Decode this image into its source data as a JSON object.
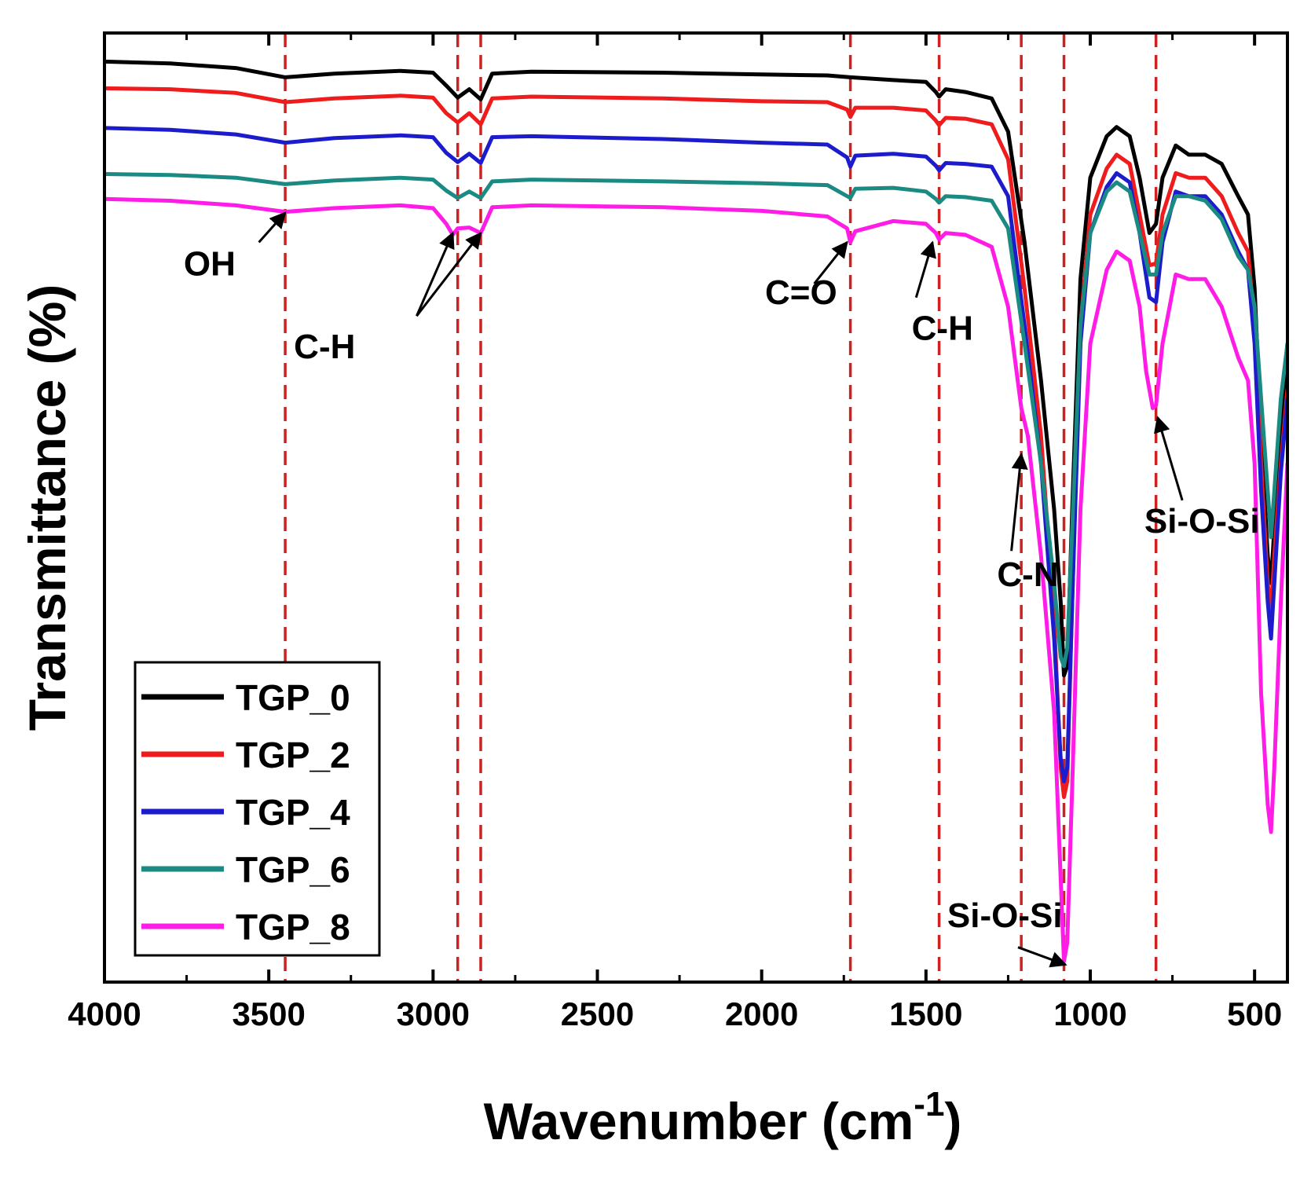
{
  "chart_data": {
    "type": "line",
    "title": "",
    "xlabel": "Wavenumber",
    "xlabel_unit_base": "(cm",
    "xlabel_unit_exp": "-1",
    "xlabel_unit_close": ")",
    "ylabel": "Transmittance (%)",
    "xlim": [
      4000,
      400
    ],
    "x_reversed": true,
    "ylim": [
      0,
      100
    ],
    "y_tick_labels_shown": false,
    "grid": false,
    "legend_position": "bottom-left",
    "x_ticks": [
      4000,
      3500,
      3000,
      2500,
      2000,
      1500,
      1000,
      500
    ],
    "x_tick_labels": [
      "4000",
      "3500",
      "3000",
      "2500",
      "2000",
      "1500",
      "1000",
      "500"
    ],
    "reference_lines": [
      3450,
      2925,
      2855,
      1730,
      1460,
      1210,
      1080,
      800
    ],
    "series": [
      {
        "name": "TGP_0",
        "color": "#000000",
        "points": [
          [
            4000,
            98.6
          ],
          [
            3800,
            98.4
          ],
          [
            3600,
            97.9
          ],
          [
            3450,
            96.9
          ],
          [
            3300,
            97.3
          ],
          [
            3100,
            97.6
          ],
          [
            3000,
            97.4
          ],
          [
            2960,
            96.0
          ],
          [
            2925,
            94.7
          ],
          [
            2890,
            95.6
          ],
          [
            2855,
            94.5
          ],
          [
            2820,
            97.3
          ],
          [
            2700,
            97.5
          ],
          [
            2300,
            97.4
          ],
          [
            2000,
            97.2
          ],
          [
            1800,
            97.1
          ],
          [
            1730,
            96.9
          ],
          [
            1600,
            96.6
          ],
          [
            1500,
            96.4
          ],
          [
            1470,
            95.3
          ],
          [
            1460,
            94.8
          ],
          [
            1440,
            95.6
          ],
          [
            1380,
            95.3
          ],
          [
            1300,
            94.6
          ],
          [
            1250,
            91.0
          ],
          [
            1200,
            79.0
          ],
          [
            1150,
            64.0
          ],
          [
            1110,
            50.0
          ],
          [
            1090,
            40.0
          ],
          [
            1080,
            32.0
          ],
          [
            1070,
            33.0
          ],
          [
            1055,
            50.0
          ],
          [
            1030,
            75.0
          ],
          [
            1000,
            86.0
          ],
          [
            950,
            90.5
          ],
          [
            920,
            91.5
          ],
          [
            880,
            90.5
          ],
          [
            850,
            86.0
          ],
          [
            820,
            80.0
          ],
          [
            800,
            81.0
          ],
          [
            780,
            86.0
          ],
          [
            740,
            89.5
          ],
          [
            700,
            88.5
          ],
          [
            650,
            88.5
          ],
          [
            600,
            87.5
          ],
          [
            550,
            84.0
          ],
          [
            520,
            82.0
          ],
          [
            500,
            74.0
          ],
          [
            480,
            58.0
          ],
          [
            460,
            45.0
          ],
          [
            450,
            42.0
          ],
          [
            440,
            48.0
          ],
          [
            420,
            58.0
          ],
          [
            400,
            68.0
          ]
        ]
      },
      {
        "name": "TGP_2",
        "color": "#ee1c1c",
        "points": [
          [
            4000,
            95.7
          ],
          [
            3800,
            95.6
          ],
          [
            3600,
            95.2
          ],
          [
            3450,
            94.2
          ],
          [
            3300,
            94.6
          ],
          [
            3100,
            94.9
          ],
          [
            3000,
            94.7
          ],
          [
            2960,
            93.0
          ],
          [
            2925,
            92.0
          ],
          [
            2890,
            93.0
          ],
          [
            2855,
            91.8
          ],
          [
            2820,
            94.6
          ],
          [
            2700,
            94.8
          ],
          [
            2300,
            94.6
          ],
          [
            2000,
            94.3
          ],
          [
            1800,
            94.2
          ],
          [
            1740,
            93.4
          ],
          [
            1730,
            92.6
          ],
          [
            1715,
            93.6
          ],
          [
            1600,
            93.6
          ],
          [
            1500,
            93.3
          ],
          [
            1470,
            92.2
          ],
          [
            1460,
            91.7
          ],
          [
            1440,
            92.5
          ],
          [
            1380,
            92.4
          ],
          [
            1300,
            91.8
          ],
          [
            1250,
            88.0
          ],
          [
            1200,
            74.0
          ],
          [
            1150,
            58.0
          ],
          [
            1110,
            38.0
          ],
          [
            1090,
            22.0
          ],
          [
            1080,
            18.8
          ],
          [
            1070,
            20.5
          ],
          [
            1055,
            40.0
          ],
          [
            1030,
            70.0
          ],
          [
            1000,
            82.0
          ],
          [
            950,
            87.0
          ],
          [
            920,
            88.5
          ],
          [
            880,
            87.5
          ],
          [
            850,
            82.0
          ],
          [
            820,
            76.5
          ],
          [
            800,
            76.7
          ],
          [
            780,
            82.0
          ],
          [
            740,
            86.5
          ],
          [
            700,
            86.0
          ],
          [
            650,
            86.0
          ],
          [
            600,
            84.0
          ],
          [
            550,
            80.0
          ],
          [
            520,
            78.0
          ],
          [
            500,
            70.0
          ],
          [
            480,
            55.0
          ],
          [
            460,
            42.0
          ],
          [
            450,
            39.0
          ],
          [
            440,
            45.0
          ],
          [
            420,
            55.0
          ],
          [
            400,
            63.0
          ]
        ]
      },
      {
        "name": "TGP_4",
        "color": "#1c1ccc",
        "points": [
          [
            4000,
            91.4
          ],
          [
            3800,
            91.2
          ],
          [
            3600,
            90.7
          ],
          [
            3450,
            89.8
          ],
          [
            3300,
            90.3
          ],
          [
            3100,
            90.6
          ],
          [
            3000,
            90.4
          ],
          [
            2960,
            88.7
          ],
          [
            2925,
            87.7
          ],
          [
            2890,
            88.6
          ],
          [
            2855,
            87.6
          ],
          [
            2820,
            90.4
          ],
          [
            2700,
            90.5
          ],
          [
            2300,
            90.2
          ],
          [
            2000,
            89.8
          ],
          [
            1800,
            89.6
          ],
          [
            1740,
            88.2
          ],
          [
            1730,
            87.2
          ],
          [
            1715,
            88.4
          ],
          [
            1600,
            88.6
          ],
          [
            1500,
            88.3
          ],
          [
            1470,
            87.3
          ],
          [
            1460,
            86.8
          ],
          [
            1440,
            87.6
          ],
          [
            1380,
            87.5
          ],
          [
            1300,
            87.2
          ],
          [
            1250,
            84.0
          ],
          [
            1200,
            70.0
          ],
          [
            1150,
            55.0
          ],
          [
            1110,
            36.0
          ],
          [
            1090,
            23.0
          ],
          [
            1080,
            20.5
          ],
          [
            1070,
            22.0
          ],
          [
            1055,
            40.0
          ],
          [
            1030,
            68.0
          ],
          [
            1000,
            80.0
          ],
          [
            950,
            85.0
          ],
          [
            920,
            86.5
          ],
          [
            880,
            85.5
          ],
          [
            850,
            80.0
          ],
          [
            820,
            73.0
          ],
          [
            800,
            72.5
          ],
          [
            780,
            79.0
          ],
          [
            740,
            84.5
          ],
          [
            700,
            84.0
          ],
          [
            650,
            84.0
          ],
          [
            600,
            82.0
          ],
          [
            550,
            78.0
          ],
          [
            520,
            76.0
          ],
          [
            500,
            68.0
          ],
          [
            480,
            52.0
          ],
          [
            460,
            40.0
          ],
          [
            450,
            36.0
          ],
          [
            440,
            42.0
          ],
          [
            420,
            54.0
          ],
          [
            400,
            62.0
          ]
        ]
      },
      {
        "name": "TGP_6",
        "color": "#1a8a82",
        "points": [
          [
            4000,
            86.4
          ],
          [
            3800,
            86.3
          ],
          [
            3600,
            86.0
          ],
          [
            3450,
            85.3
          ],
          [
            3300,
            85.7
          ],
          [
            3100,
            86.0
          ],
          [
            3000,
            85.8
          ],
          [
            2960,
            84.6
          ],
          [
            2925,
            83.8
          ],
          [
            2890,
            84.5
          ],
          [
            2855,
            83.8
          ],
          [
            2820,
            85.6
          ],
          [
            2700,
            85.8
          ],
          [
            2300,
            85.6
          ],
          [
            2000,
            85.4
          ],
          [
            1800,
            85.2
          ],
          [
            1730,
            83.8
          ],
          [
            1715,
            84.8
          ],
          [
            1600,
            84.9
          ],
          [
            1500,
            84.5
          ],
          [
            1470,
            83.7
          ],
          [
            1460,
            83.3
          ],
          [
            1440,
            84.0
          ],
          [
            1380,
            83.9
          ],
          [
            1300,
            83.5
          ],
          [
            1250,
            80.5
          ],
          [
            1200,
            68.0
          ],
          [
            1150,
            55.0
          ],
          [
            1110,
            42.0
          ],
          [
            1090,
            34.0
          ],
          [
            1080,
            33.0
          ],
          [
            1070,
            35.0
          ],
          [
            1055,
            48.0
          ],
          [
            1030,
            70.0
          ],
          [
            1000,
            80.0
          ],
          [
            950,
            84.5
          ],
          [
            920,
            85.5
          ],
          [
            880,
            84.5
          ],
          [
            850,
            80.0
          ],
          [
            820,
            75.5
          ],
          [
            800,
            75.5
          ],
          [
            780,
            80.0
          ],
          [
            740,
            84.0
          ],
          [
            700,
            84.0
          ],
          [
            650,
            83.5
          ],
          [
            600,
            81.5
          ],
          [
            550,
            77.5
          ],
          [
            520,
            76.0
          ],
          [
            500,
            72.0
          ],
          [
            480,
            62.0
          ],
          [
            460,
            52.0
          ],
          [
            450,
            47.0
          ],
          [
            440,
            52.0
          ],
          [
            420,
            62.0
          ],
          [
            400,
            68.0
          ]
        ]
      },
      {
        "name": "TGP_8",
        "color": "#ff1ce6",
        "points": [
          [
            4000,
            83.7
          ],
          [
            3800,
            83.5
          ],
          [
            3600,
            83.0
          ],
          [
            3450,
            82.3
          ],
          [
            3300,
            82.7
          ],
          [
            3100,
            83.0
          ],
          [
            3000,
            82.7
          ],
          [
            2960,
            81.0
          ],
          [
            2940,
            79.8
          ],
          [
            2925,
            80.5
          ],
          [
            2890,
            80.6
          ],
          [
            2855,
            80.0
          ],
          [
            2820,
            82.8
          ],
          [
            2700,
            83.0
          ],
          [
            2300,
            82.8
          ],
          [
            2000,
            82.4
          ],
          [
            1800,
            81.8
          ],
          [
            1740,
            80.5
          ],
          [
            1730,
            79.0
          ],
          [
            1715,
            80.2
          ],
          [
            1600,
            81.3
          ],
          [
            1500,
            81.0
          ],
          [
            1470,
            80.0
          ],
          [
            1460,
            79.3
          ],
          [
            1440,
            80.0
          ],
          [
            1380,
            79.8
          ],
          [
            1300,
            78.5
          ],
          [
            1250,
            72.0
          ],
          [
            1210,
            61.0
          ],
          [
            1190,
            58.0
          ],
          [
            1150,
            45.0
          ],
          [
            1110,
            28.0
          ],
          [
            1090,
            10.0
          ],
          [
            1080,
            1.0
          ],
          [
            1070,
            3.0
          ],
          [
            1055,
            20.0
          ],
          [
            1030,
            50.0
          ],
          [
            1000,
            68.0
          ],
          [
            950,
            76.0
          ],
          [
            920,
            78.0
          ],
          [
            880,
            77.0
          ],
          [
            850,
            72.0
          ],
          [
            830,
            65.0
          ],
          [
            810,
            61.0
          ],
          [
            800,
            61.3
          ],
          [
            780,
            68.0
          ],
          [
            740,
            75.5
          ],
          [
            700,
            75.0
          ],
          [
            650,
            75.0
          ],
          [
            600,
            72.0
          ],
          [
            550,
            66.5
          ],
          [
            520,
            64.0
          ],
          [
            500,
            55.0
          ],
          [
            480,
            30.0
          ],
          [
            460,
            18.0
          ],
          [
            450,
            15.0
          ],
          [
            440,
            22.0
          ],
          [
            420,
            40.0
          ],
          [
            400,
            55.0
          ]
        ]
      }
    ],
    "annotations": [
      {
        "text": "OH",
        "text_x": 3680,
        "text_y": 75.4,
        "arrow_from_x": 3530,
        "arrow_from_y": 79.0,
        "arrow_to_x": 3450,
        "arrow_to_y": 82.2
      },
      {
        "text": "C-H",
        "text_x": 3330,
        "text_y": 66.4,
        "arrows": [
          {
            "from_x": 3050,
            "from_y": 71.0,
            "to_x": 2940,
            "to_y": 80.0
          },
          {
            "from_x": 3050,
            "from_y": 71.0,
            "to_x": 2855,
            "to_y": 80.0
          }
        ]
      },
      {
        "text": "C=O",
        "text_x": 1880,
        "text_y": 72.3,
        "arrow_from_x": 1840,
        "arrow_from_y": 74.5,
        "arrow_to_x": 1740,
        "arrow_to_y": 79.0
      },
      {
        "text": "C-H",
        "text_x": 1450,
        "text_y": 68.4,
        "arrow_from_x": 1530,
        "arrow_from_y": 73.0,
        "arrow_to_x": 1480,
        "arrow_to_y": 79.0
      },
      {
        "text": "C-N",
        "text_x": 1190,
        "text_y": 41.7,
        "arrow_from_x": 1240,
        "arrow_from_y": 45.5,
        "arrow_to_x": 1210,
        "arrow_to_y": 56.0
      },
      {
        "text": "Si-O-Si",
        "text_x": 660,
        "text_y": 47.5,
        "arrow_from_x": 720,
        "arrow_from_y": 51.0,
        "arrow_to_x": 795,
        "arrow_to_y": 60.0
      },
      {
        "text": "Si-O-Si",
        "text_x": 1260,
        "text_y": 4.7,
        "arrow_from_x": 1220,
        "arrow_from_y": 2.5,
        "arrow_to_x": 1075,
        "arrow_to_y": 0.6
      }
    ],
    "reference_line_color": "#cc2222",
    "axis_color": "#000000"
  }
}
